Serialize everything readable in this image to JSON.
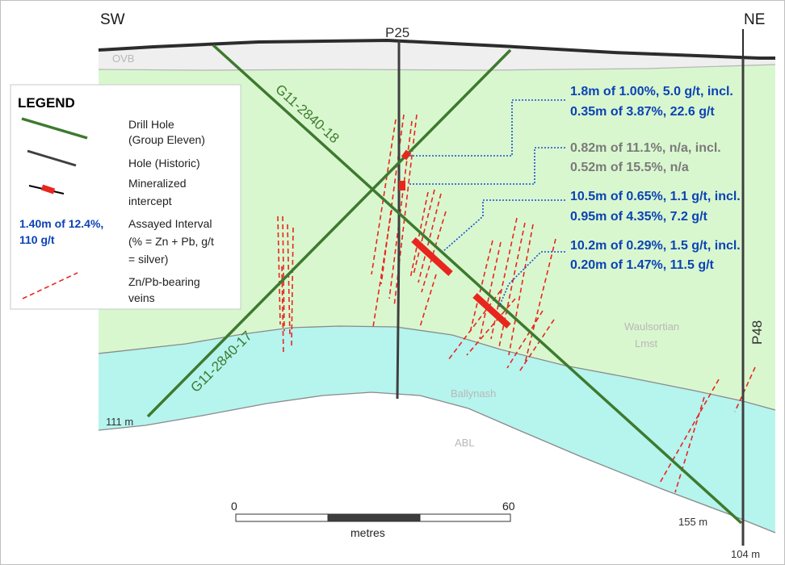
{
  "directions": {
    "left": "SW",
    "right": "NE"
  },
  "holes": {
    "p25": "P25",
    "p48": "P48",
    "g17": "G11-2840-17",
    "g18": "G11-2840-18"
  },
  "units": {
    "ovb": "OVB",
    "waulsortian_1": "Waulsortian",
    "waulsortian_2": "Lmst",
    "ballynash": "Ballynash",
    "abl": "ABL"
  },
  "depths": {
    "d111": "111 m",
    "d155": "155 m",
    "d104": "104 m"
  },
  "assays": [
    {
      "line1": "1.8m of 1.00%, 5.0 g/t, incl.",
      "line2": "0.35m of 3.87%, 22.6 g/t",
      "style": "blue"
    },
    {
      "line1": "0.82m of 11.1%, n/a, incl.",
      "line2": "0.52m of 15.5%, n/a",
      "style": "grey"
    },
    {
      "line1": "10.5m of 0.65%, 1.1 g/t, incl.",
      "line2": "0.95m of 4.35%, 7.2 g/t",
      "style": "blue"
    },
    {
      "line1": "10.2m of 0.29%, 1.5 g/t, incl.",
      "line2": "0.20m of 1.47%, 11.5 g/t",
      "style": "blue"
    }
  ],
  "legend": {
    "title": "LEGEND",
    "drill_1": "Drill Hole",
    "drill_2": "(Group Eleven)",
    "historic": "Hole (Historic)",
    "intercept_1": "Mineralized",
    "intercept_2": "intercept",
    "assay_example_1": "1.40m of 12.4%,",
    "assay_example_2": "110 g/t",
    "assayed_1": "Assayed Interval",
    "assayed_2": "(% = Zn + Pb, g/t",
    "assayed_3": "= silver)",
    "veins_1": "Zn/Pb-bearing",
    "veins_2": "veins"
  },
  "scale": {
    "start": "0",
    "end": "60",
    "unit": "metres"
  },
  "colors": {
    "green_zone": "#d9f7cf",
    "cyan_zone": "#b6f4ee",
    "drill_green": "#3d7a2e",
    "historic_grey": "#3f3f3f",
    "vein_red": "#e8261d",
    "assay_blue": "#0b43b5",
    "assay_grey": "#7a7a7a"
  }
}
